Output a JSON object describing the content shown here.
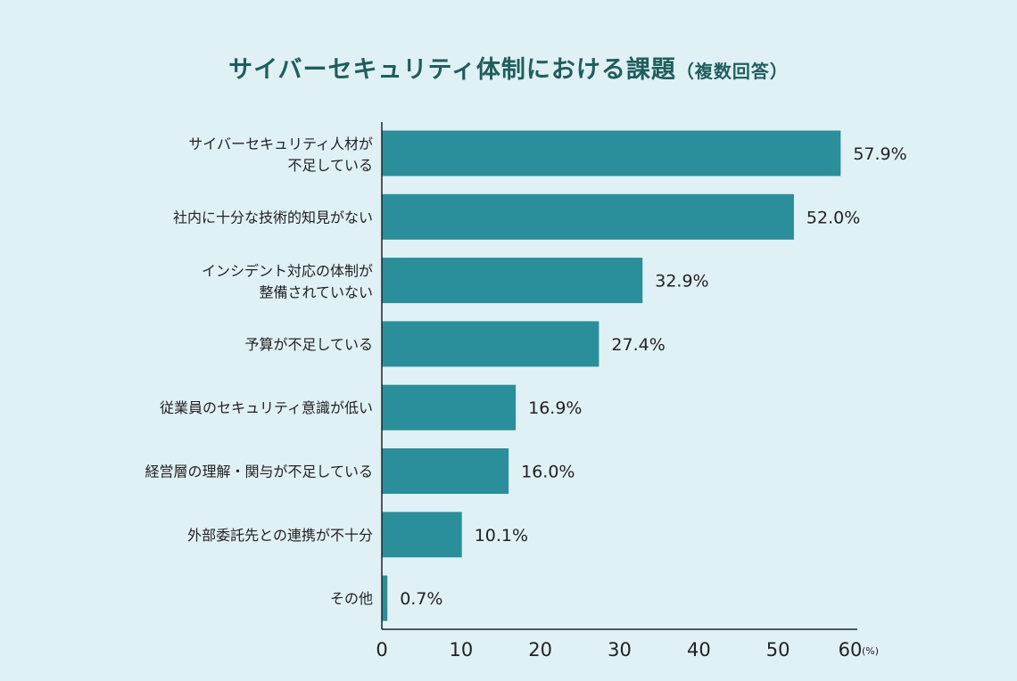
{
  "chart_data": {
    "type": "bar",
    "orientation": "horizontal",
    "title": "サイバーセキュリティ体制における課題",
    "subtitle": "（複数回答）",
    "categories": [
      [
        "サイバーセキュリティ人材が",
        "不足している"
      ],
      [
        "社内に十分な技術的知見がない"
      ],
      [
        "インシデント対応の体制が",
        "整備されていない"
      ],
      [
        "予算が不足している"
      ],
      [
        "従業員のセキュリティ意識が低い"
      ],
      [
        "経営層の理解・関与が不足している"
      ],
      [
        "外部委託先との連携が不十分"
      ],
      [
        "その他"
      ]
    ],
    "values": [
      57.9,
      52.0,
      32.9,
      27.4,
      16.9,
      16.0,
      10.1,
      0.7
    ],
    "value_labels": [
      "57.9%",
      "52.0%",
      "32.9%",
      "27.4%",
      "16.9%",
      "16.0%",
      "10.1%",
      "0.7%"
    ],
    "xlim": [
      0,
      60
    ],
    "xticks": [
      "0",
      "10",
      "20",
      "30",
      "40",
      "50",
      "60"
    ],
    "xunit": "(%)",
    "grid": false,
    "colors": {
      "bar": "#2a8f9a",
      "title": "#1f5e5c",
      "background": "#dff1f5"
    }
  }
}
